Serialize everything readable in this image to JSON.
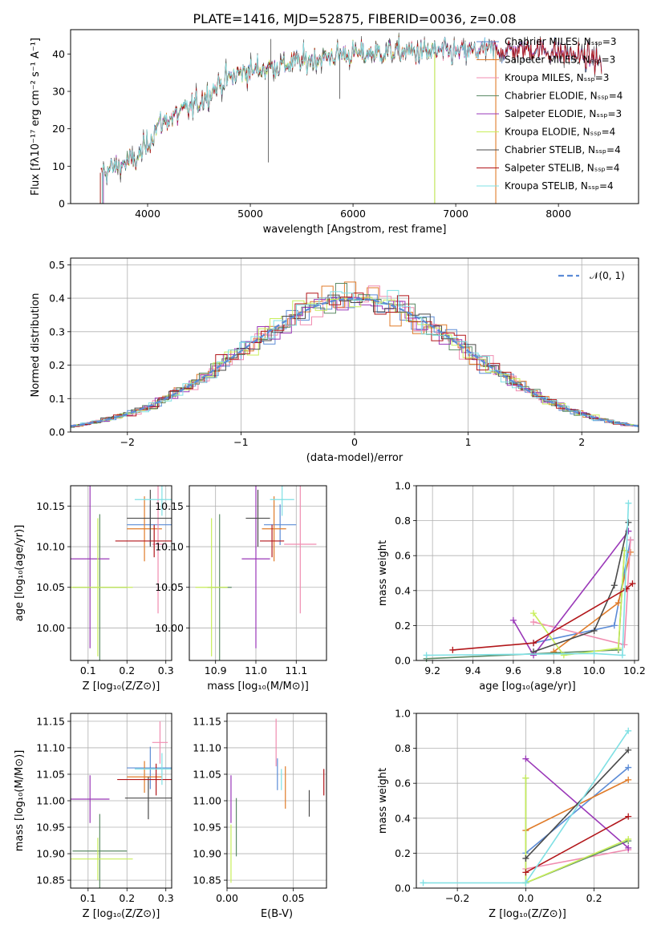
{
  "colors": {
    "chabrier_miles": "#5b8bd6",
    "salpeter_miles": "#e07b29",
    "kroupa_miles": "#f08cb0",
    "chabrier_elodie": "#5b8a65",
    "salpeter_elodie": "#9a38b8",
    "kroupa_elodie": "#c8ee5a",
    "chabrier_stelib": "#4a4a4a",
    "salpeter_stelib": "#b2161a",
    "kroupa_stelib": "#7fe0e4",
    "gaussian": "#5b8bd6"
  },
  "chart_data": [
    {
      "id": "spectrum",
      "type": "line",
      "title": "PLATE=1416, MJD=52875, FIBERID=0036, z=0.08",
      "xlabel": "wavelength [Angstrom, rest frame]",
      "ylabel": "Flux [fλ10⁻¹⁷ erg cm⁻² s⁻¹ A⁻¹]",
      "xlim": [
        3250,
        8780
      ],
      "ylim": [
        0,
        46.5
      ],
      "xticks": [
        "4000",
        "5000",
        "6000",
        "7000",
        "8000"
      ],
      "yticks": [
        "0",
        "10",
        "20",
        "30",
        "40"
      ],
      "legend_position": "top-right",
      "legend": [
        "Chabrier MILES, Nₛₛₚ=3",
        "Salpeter MILES, Nₛₛₚ=3",
        "Kroupa MILES, Nₛₛₚ=3",
        "Chabrier ELODIE, Nₛₛₚ=4",
        "Salpeter ELODIE, Nₛₛₚ=3",
        "Kroupa ELODIE, Nₛₛₚ=4",
        "Chabrier STELIB, Nₛₛₚ=4",
        "Salpeter STELIB, Nₛₛₚ=4",
        "Kroupa STELIB, Nₛₛₚ=4"
      ],
      "continuum": {
        "x": [
          3520,
          3700,
          3900,
          4000,
          4100,
          4300,
          4500,
          4700,
          4900,
          5100,
          5300,
          5500,
          5700,
          5900,
          6100,
          6300,
          6500,
          6700,
          6900,
          7100,
          7300,
          7500,
          7700,
          7900,
          8100,
          8300,
          8500,
          8700
        ],
        "y": [
          8,
          10,
          12,
          16,
          21,
          24,
          27,
          32,
          35,
          36,
          37,
          38,
          39,
          40,
          40,
          40.5,
          40.5,
          40.5,
          40.5,
          40.5,
          41,
          41,
          41.5,
          41,
          40,
          39,
          37,
          35
        ]
      },
      "spikes": [
        {
          "x": 5175,
          "y": 11
        },
        {
          "x": 5200,
          "y": 44
        },
        {
          "x": 5870,
          "y": 28
        },
        {
          "x": 6795,
          "y": 0
        },
        {
          "x": 7390,
          "y": 0
        }
      ]
    },
    {
      "id": "residuals",
      "type": "histogram",
      "xlabel": "(data-model)/error",
      "ylabel": "Normed distribution",
      "xlim": [
        -2.5,
        2.5
      ],
      "ylim": [
        0,
        0.52
      ],
      "xticks": [
        "−2",
        "−1",
        "0",
        "1",
        "2"
      ],
      "yticks": [
        "0.0",
        "0.1",
        "0.2",
        "0.3",
        "0.4",
        "0.5"
      ],
      "grid": true,
      "legend_position": "top-right",
      "legend": [
        "𝒩(0, 1)"
      ],
      "bin_width": 0.1,
      "gaussian": {
        "mean": 0,
        "sigma": 1
      }
    },
    {
      "id": "age_vs_Z",
      "type": "scatter",
      "xlabel": "Z [log₁₀(Z/Z⊙)]",
      "ylabel": "age  [log₁₀(age/yr)]",
      "xlim": [
        0.055,
        0.315
      ],
      "ylim": [
        9.96,
        10.175
      ],
      "xticks": [
        "0.1",
        "0.2",
        "0.3"
      ],
      "yticks": [
        "10.00",
        "10.05",
        "10.10",
        "10.15"
      ],
      "grid": true,
      "points": [
        {
          "c": "chabrier_miles",
          "x": 0.26,
          "xerr": 0.06,
          "y": 10.127,
          "yerr": 0.025
        },
        {
          "c": "salpeter_miles",
          "x": 0.245,
          "xerr": 0.045,
          "y": 10.122,
          "yerr": 0.04
        },
        {
          "c": "kroupa_miles",
          "x": 0.28,
          "xerr": 0.015,
          "y": 10.103,
          "yerr": 0.085
        },
        {
          "c": "chabrier_elodie",
          "x": 0.13,
          "xerr": 0.07,
          "y": 10.05,
          "yerr": 0.09
        },
        {
          "c": "salpeter_elodie",
          "x": 0.105,
          "xerr": 0.05,
          "y": 10.085,
          "yerr": 0.11
        },
        {
          "c": "kroupa_elodie",
          "x": 0.125,
          "xerr": 0.09,
          "y": 10.05,
          "yerr": 0.085
        },
        {
          "c": "chabrier_stelib",
          "x": 0.26,
          "xerr": 0.06,
          "y": 10.135,
          "yerr": 0.035
        },
        {
          "c": "salpeter_stelib",
          "x": 0.27,
          "xerr": 0.1,
          "y": 10.107,
          "yerr": 0.02
        },
        {
          "c": "kroupa_stelib",
          "x": 0.29,
          "xerr": 0.07,
          "y": 10.158,
          "yerr": 0.02
        }
      ]
    },
    {
      "id": "age_vs_mass",
      "type": "scatter",
      "xlabel": "mass [log₁₀(M/M⊙)]",
      "xlim": [
        10.835,
        11.175
      ],
      "ylim": [
        9.96,
        10.175
      ],
      "xticks": [
        "10.9",
        "11.0",
        "11.1"
      ],
      "yticks": [
        "10.00",
        "10.05",
        "10.10",
        "10.15"
      ],
      "grid": true,
      "points": [
        {
          "c": "chabrier_miles",
          "x": 11.06,
          "xerr": 0.04,
          "y": 10.127,
          "yerr": 0.025
        },
        {
          "c": "salpeter_miles",
          "x": 11.045,
          "xerr": 0.03,
          "y": 10.122,
          "yerr": 0.04
        },
        {
          "c": "kroupa_miles",
          "x": 11.11,
          "xerr": 0.04,
          "y": 10.103,
          "yerr": 0.085
        },
        {
          "c": "chabrier_elodie",
          "x": 10.91,
          "xerr": 0.03,
          "y": 10.05,
          "yerr": 0.09
        },
        {
          "c": "salpeter_elodie",
          "x": 11.0,
          "xerr": 0.035,
          "y": 10.085,
          "yerr": 0.11
        },
        {
          "c": "kroupa_elodie",
          "x": 10.89,
          "xerr": 0.04,
          "y": 10.05,
          "yerr": 0.085
        },
        {
          "c": "chabrier_stelib",
          "x": 11.005,
          "xerr": 0.03,
          "y": 10.135,
          "yerr": 0.035
        },
        {
          "c": "salpeter_stelib",
          "x": 11.04,
          "xerr": 0.03,
          "y": 10.107,
          "yerr": 0.02
        },
        {
          "c": "kroupa_stelib",
          "x": 11.065,
          "xerr": 0.03,
          "y": 10.158,
          "yerr": 0.02
        }
      ]
    },
    {
      "id": "mass_weight_vs_age",
      "type": "line",
      "xlabel": "age  [log₁₀(age/yr)]",
      "ylabel": "mass weight",
      "xlim": [
        9.12,
        10.22
      ],
      "ylim": [
        0,
        1.0
      ],
      "xticks": [
        "9.2",
        "9.4",
        "9.6",
        "9.8",
        "10.0",
        "10.2"
      ],
      "yticks": [
        "0.0",
        "0.2",
        "0.4",
        "0.6",
        "0.8",
        "1.0"
      ],
      "grid": true,
      "series": [
        {
          "c": "chabrier_miles",
          "x": [
            9.7,
            10.1,
            10.18
          ],
          "y": [
            0.1,
            0.2,
            0.69
          ]
        },
        {
          "c": "salpeter_miles",
          "x": [
            9.8,
            10.12,
            10.18
          ],
          "y": [
            0.05,
            0.33,
            0.62
          ]
        },
        {
          "c": "kroupa_miles",
          "x": [
            9.7,
            10.15,
            10.18
          ],
          "y": [
            0.22,
            0.09,
            0.69
          ]
        },
        {
          "c": "chabrier_elodie",
          "x": [
            9.17,
            10.12,
            10.15
          ],
          "y": [
            0.01,
            0.06,
            0.63
          ]
        },
        {
          "c": "salpeter_elodie",
          "x": [
            9.6,
            9.7,
            10.17
          ],
          "y": [
            0.23,
            0.03,
            0.74
          ]
        },
        {
          "c": "kroupa_elodie",
          "x": [
            9.7,
            9.85,
            10.12,
            10.15
          ],
          "y": [
            0.27,
            0.03,
            0.07,
            0.63
          ]
        },
        {
          "c": "chabrier_stelib",
          "x": [
            9.7,
            10.0,
            10.1,
            10.17
          ],
          "y": [
            0.05,
            0.17,
            0.43,
            0.79
          ]
        },
        {
          "c": "salpeter_stelib",
          "x": [
            9.3,
            9.7,
            10.16,
            10.19
          ],
          "y": [
            0.06,
            0.1,
            0.41,
            0.44
          ]
        },
        {
          "c": "kroupa_stelib",
          "x": [
            9.17,
            10.0,
            10.14,
            10.17
          ],
          "y": [
            0.03,
            0.04,
            0.03,
            0.9
          ]
        }
      ]
    },
    {
      "id": "mass_vs_Z",
      "type": "scatter",
      "xlabel": "Z [log₁₀(Z/Z⊙)]",
      "ylabel": "mass [log₁₀(M/M⊙)]",
      "xlim": [
        0.055,
        0.315
      ],
      "ylim": [
        10.835,
        11.165
      ],
      "xticks": [
        "0.1",
        "0.2",
        "0.3"
      ],
      "yticks": [
        "10.85",
        "10.90",
        "10.95",
        "11.00",
        "11.05",
        "11.10",
        "11.15"
      ],
      "grid": true,
      "points": [
        {
          "c": "chabrier_miles",
          "x": 0.26,
          "xerr": 0.06,
          "y": 11.062,
          "yerr": 0.04
        },
        {
          "c": "salpeter_miles",
          "x": 0.245,
          "xerr": 0.045,
          "y": 11.045,
          "yerr": 0.03
        },
        {
          "c": "kroupa_miles",
          "x": 0.285,
          "xerr": 0.02,
          "y": 11.11,
          "yerr": 0.04
        },
        {
          "c": "chabrier_elodie",
          "x": 0.13,
          "xerr": 0.07,
          "y": 10.905,
          "yerr": 0.07
        },
        {
          "c": "salpeter_elodie",
          "x": 0.105,
          "xerr": 0.05,
          "y": 11.003,
          "yerr": 0.045
        },
        {
          "c": "kroupa_elodie",
          "x": 0.125,
          "xerr": 0.09,
          "y": 10.89,
          "yerr": 0.04
        },
        {
          "c": "chabrier_stelib",
          "x": 0.255,
          "xerr": 0.06,
          "y": 11.005,
          "yerr": 0.04
        },
        {
          "c": "salpeter_stelib",
          "x": 0.275,
          "xerr": 0.1,
          "y": 11.04,
          "yerr": 0.03
        },
        {
          "c": "kroupa_stelib",
          "x": 0.29,
          "xerr": 0.07,
          "y": 11.06,
          "yerr": 0.03
        }
      ]
    },
    {
      "id": "mass_vs_ebv",
      "type": "scatter",
      "xlabel": "E(B-V)",
      "xlim": [
        0,
        0.075
      ],
      "ylim": [
        10.835,
        11.165
      ],
      "xticks": [
        "0.00",
        "0.05"
      ],
      "yticks": [
        "10.85",
        "10.90",
        "10.95",
        "11.00",
        "11.05",
        "11.10",
        "11.15"
      ],
      "grid": true,
      "points": [
        {
          "c": "chabrier_miles",
          "x": 0.038,
          "xerr": 0,
          "y": 11.05,
          "yerr": 0.03
        },
        {
          "c": "salpeter_miles",
          "x": 0.044,
          "xerr": 0,
          "y": 11.025,
          "yerr": 0.04
        },
        {
          "c": "kroupa_miles",
          "x": 0.037,
          "xerr": 0,
          "y": 11.11,
          "yerr": 0.045
        },
        {
          "c": "chabrier_elodie",
          "x": 0.007,
          "xerr": 0,
          "y": 10.95,
          "yerr": 0.055
        },
        {
          "c": "salpeter_elodie",
          "x": 0.003,
          "xerr": 0,
          "y": 11.003,
          "yerr": 0.045
        },
        {
          "c": "kroupa_elodie",
          "x": 0.003,
          "xerr": 0,
          "y": 10.9,
          "yerr": 0.055
        },
        {
          "c": "chabrier_stelib",
          "x": 0.062,
          "xerr": 0,
          "y": 10.995,
          "yerr": 0.025
        },
        {
          "c": "salpeter_stelib",
          "x": 0.073,
          "xerr": 0,
          "y": 11.035,
          "yerr": 0.025
        },
        {
          "c": "kroupa_stelib",
          "x": 0.041,
          "xerr": 0,
          "y": 11.04,
          "yerr": 0.02
        }
      ]
    },
    {
      "id": "mass_weight_vs_Z",
      "type": "line",
      "xlabel": "Z [log₁₀(Z/Z⊙)]",
      "ylabel": "mass weight",
      "xlim": [
        -0.32,
        0.33
      ],
      "ylim": [
        0,
        1.0
      ],
      "xticks": [
        "−0.2",
        "0.0",
        "0.2"
      ],
      "yticks": [
        "0.0",
        "0.2",
        "0.4",
        "0.6",
        "0.8",
        "1.0"
      ],
      "grid": true,
      "series": [
        {
          "c": "chabrier_miles",
          "x": [
            0.0,
            0.3
          ],
          "y": [
            0.2,
            0.69
          ]
        },
        {
          "c": "salpeter_miles",
          "x": [
            0.0,
            0.3
          ],
          "y": [
            0.33,
            0.62
          ]
        },
        {
          "c": "kroupa_miles",
          "x": [
            0.0,
            0.3
          ],
          "y": [
            0.11,
            0.22
          ]
        },
        {
          "c": "chabrier_elodie",
          "x": [
            0.0,
            0.0,
            0.3
          ],
          "y": [
            0.63,
            0.03,
            0.27
          ]
        },
        {
          "c": "salpeter_elodie",
          "x": [
            0.0,
            0.3
          ],
          "y": [
            0.74,
            0.23
          ]
        },
        {
          "c": "kroupa_elodie",
          "x": [
            0.0,
            0.0,
            0.3
          ],
          "y": [
            0.63,
            0.03,
            0.28
          ]
        },
        {
          "c": "chabrier_stelib",
          "x": [
            0.0,
            0.3
          ],
          "y": [
            0.17,
            0.79
          ]
        },
        {
          "c": "salpeter_stelib",
          "x": [
            0.0,
            0.3
          ],
          "y": [
            0.09,
            0.41
          ]
        },
        {
          "c": "kroupa_stelib",
          "x": [
            -0.3,
            0.0,
            0.3
          ],
          "y": [
            0.03,
            0.03,
            0.9
          ]
        }
      ]
    }
  ]
}
